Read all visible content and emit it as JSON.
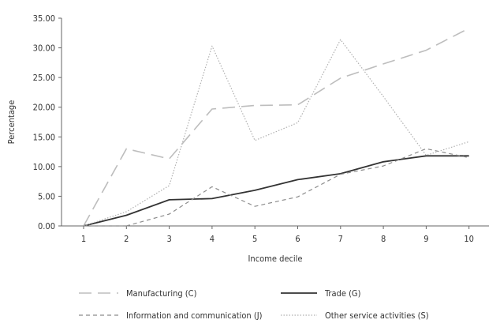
{
  "chart_data": {
    "type": "line",
    "title": "",
    "xlabel": "Income decile",
    "ylabel": "Percentage",
    "x": [
      1,
      2,
      3,
      4,
      5,
      6,
      7,
      8,
      9,
      10
    ],
    "xticks": [
      "1",
      "2",
      "3",
      "4",
      "5",
      "6",
      "7",
      "8",
      "9",
      "10"
    ],
    "ylim": [
      0,
      35
    ],
    "yticks": [
      "0.00",
      "5.00",
      "10.00",
      "15.00",
      "20.00",
      "25.00",
      "30.00",
      "35.00"
    ],
    "grid": false,
    "legend_position": "bottom",
    "series": [
      {
        "name": "Manufacturing (C)",
        "style": "long-dash",
        "color": "#bdbdbd",
        "values": [
          0.0,
          13.0,
          11.3,
          19.7,
          20.3,
          20.4,
          24.9,
          27.3,
          29.6,
          33.3
        ]
      },
      {
        "name": "Trade (G)",
        "style": "solid",
        "color": "#333333",
        "values": [
          0.0,
          1.8,
          4.4,
          4.6,
          6.0,
          7.8,
          8.8,
          10.8,
          11.8,
          11.8
        ]
      },
      {
        "name": "Information and communication (J)",
        "style": "short-dash",
        "color": "#8c8c8c",
        "values": [
          0.0,
          0.0,
          2.0,
          6.6,
          3.3,
          4.9,
          8.7,
          10.1,
          13.0,
          11.5
        ]
      },
      {
        "name": "Other service activities (S)",
        "style": "dotted",
        "color": "#b0b0b0",
        "values": [
          0.0,
          2.4,
          6.8,
          30.3,
          14.4,
          17.4,
          31.4,
          21.8,
          11.9,
          14.2
        ]
      }
    ]
  }
}
